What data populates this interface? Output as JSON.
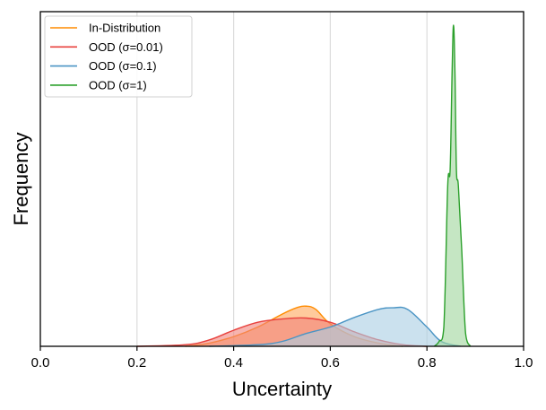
{
  "chart_data": {
    "type": "area",
    "xlabel": "Uncertainty",
    "ylabel": "Frequency",
    "xlim": [
      0.0,
      1.0
    ],
    "ylim": [
      0,
      1.0
    ],
    "xticks": [
      "0.0",
      "0.2",
      "0.4",
      "0.6",
      "0.8",
      "1.0"
    ],
    "xtick_values": [
      0.0,
      0.2,
      0.4,
      0.6,
      0.8,
      1.0
    ],
    "grid": "vertical",
    "legend_position": "top-left",
    "series": [
      {
        "name": "In-Distribution",
        "legend_label": "In-Distribution",
        "color": "#ff8c00",
        "fill": "#ffa65a",
        "x": [
          0.3,
          0.35,
          0.4,
          0.45,
          0.5,
          0.53,
          0.55,
          0.57,
          0.6,
          0.65,
          0.7,
          0.75
        ],
        "y": [
          0,
          0.01,
          0.03,
          0.06,
          0.1,
          0.12,
          0.125,
          0.115,
          0.07,
          0.03,
          0.01,
          0
        ]
      },
      {
        "name": "OOD (sigma=0.01)",
        "legend_label": "OOD (σ=0.01)",
        "color": "#e8413d",
        "fill": "#f2827a",
        "x": [
          0.2,
          0.3,
          0.35,
          0.4,
          0.45,
          0.5,
          0.55,
          0.6,
          0.65,
          0.7,
          0.75,
          0.8
        ],
        "y": [
          0,
          0.005,
          0.02,
          0.05,
          0.075,
          0.085,
          0.088,
          0.075,
          0.045,
          0.02,
          0.005,
          0
        ]
      },
      {
        "name": "OOD (sigma=0.1)",
        "legend_label": "OOD (σ=0.1)",
        "color": "#4a94c4",
        "fill": "#a9cde2",
        "x": [
          0.35,
          0.45,
          0.5,
          0.55,
          0.6,
          0.65,
          0.7,
          0.73,
          0.76,
          0.8,
          0.83,
          0.87
        ],
        "y": [
          0,
          0.005,
          0.015,
          0.04,
          0.06,
          0.09,
          0.115,
          0.12,
          0.115,
          0.06,
          0.015,
          0
        ]
      },
      {
        "name": "OOD (sigma=1)",
        "legend_label": "OOD (σ=1)",
        "color": "#2ca02c",
        "fill": "#9fd69b",
        "x": [
          0.815,
          0.825,
          0.835,
          0.843,
          0.848,
          0.852,
          0.855,
          0.858,
          0.861,
          0.865,
          0.872,
          0.88,
          0.89
        ],
        "y": [
          0,
          0.015,
          0.06,
          0.5,
          0.55,
          0.85,
          1.0,
          0.85,
          0.55,
          0.5,
          0.3,
          0.04,
          0
        ]
      }
    ]
  }
}
